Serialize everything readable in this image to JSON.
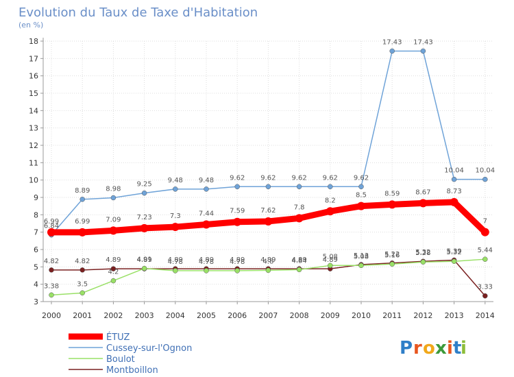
{
  "chart_data": {
    "type": "line",
    "title": "Evolution du Taux de Taxe d'Habitation",
    "subtitle": "(en %)",
    "x": [
      "2000",
      "2001",
      "2002",
      "2003",
      "2004",
      "2005",
      "2006",
      "2007",
      "2008",
      "2009",
      "2010",
      "2011",
      "2012",
      "2013",
      "2014"
    ],
    "ylim": [
      3,
      18
    ],
    "yticks": [
      3,
      4,
      5,
      6,
      7,
      8,
      9,
      10,
      11,
      12,
      13,
      14,
      15,
      16,
      17,
      18
    ],
    "series": [
      {
        "name": "ÉTUZ",
        "color": "#ff0000",
        "values": [
          6.99,
          6.99,
          7.09,
          7.23,
          7.3,
          7.44,
          7.59,
          7.62,
          7.8,
          8.2,
          8.5,
          8.59,
          8.67,
          8.73,
          7
        ],
        "labels": [
          "6.99",
          "6.99",
          "7.09",
          "7.23",
          "7.3",
          "7.44",
          "7.59",
          "7.62",
          "7.8",
          "8.2",
          "8.5",
          "8.59",
          "8.67",
          "8.73",
          "7"
        ]
      },
      {
        "name": "Cussey-sur-l'Ognon",
        "color": "#6fa3d8",
        "values": [
          6.84,
          8.89,
          8.98,
          9.25,
          9.48,
          9.48,
          9.62,
          9.62,
          9.62,
          9.62,
          9.62,
          17.43,
          17.43,
          10.04,
          10.04
        ],
        "labels": [
          "6.84",
          "8.89",
          "8.98",
          "9.25",
          "9.48",
          "9.48",
          "9.62",
          "9.62",
          "9.62",
          "9.62",
          "9.62",
          "17.43",
          "17.43",
          "10.04",
          "10.04"
        ]
      },
      {
        "name": "Boulot",
        "color": "#99e066",
        "values": [
          3.38,
          3.5,
          4.2,
          4.91,
          4.78,
          4.78,
          4.78,
          4.8,
          4.84,
          5.08,
          5.08,
          5.16,
          5.28,
          5.32,
          5.44
        ],
        "labels": [
          "3.38",
          "3.5",
          "4.2",
          "4.91",
          "4.78",
          "4.78",
          "4.78",
          "4.8",
          "4.84",
          "5.08",
          "5.08",
          "5.16",
          "5.28",
          "5.32",
          "5.44"
        ]
      },
      {
        "name": "Montboillon",
        "color": "#7a2020",
        "values": [
          4.82,
          4.82,
          4.89,
          4.89,
          4.89,
          4.89,
          4.89,
          4.89,
          4.89,
          4.89,
          5.13,
          5.22,
          5.32,
          5.39,
          3.33
        ],
        "labels": [
          "4.82",
          "4.82",
          "4.89",
          "4.89",
          "4.89",
          "4.89",
          "4.89",
          "4.89",
          "4.89",
          "4.89",
          "5.13",
          "5.22",
          "5.32",
          "5.39",
          "3.33"
        ]
      }
    ],
    "legend": {
      "position": "bottom-left"
    }
  },
  "branding": {
    "logo_text": [
      "P",
      "r",
      "o",
      "x",
      "i",
      "t",
      "i"
    ],
    "logo_colors": [
      "#2f7fc8",
      "#e8561f",
      "#f1a81b",
      "#3d9a3a",
      "#e8561f",
      "#2f7fc8",
      "#8cbd3a"
    ]
  }
}
